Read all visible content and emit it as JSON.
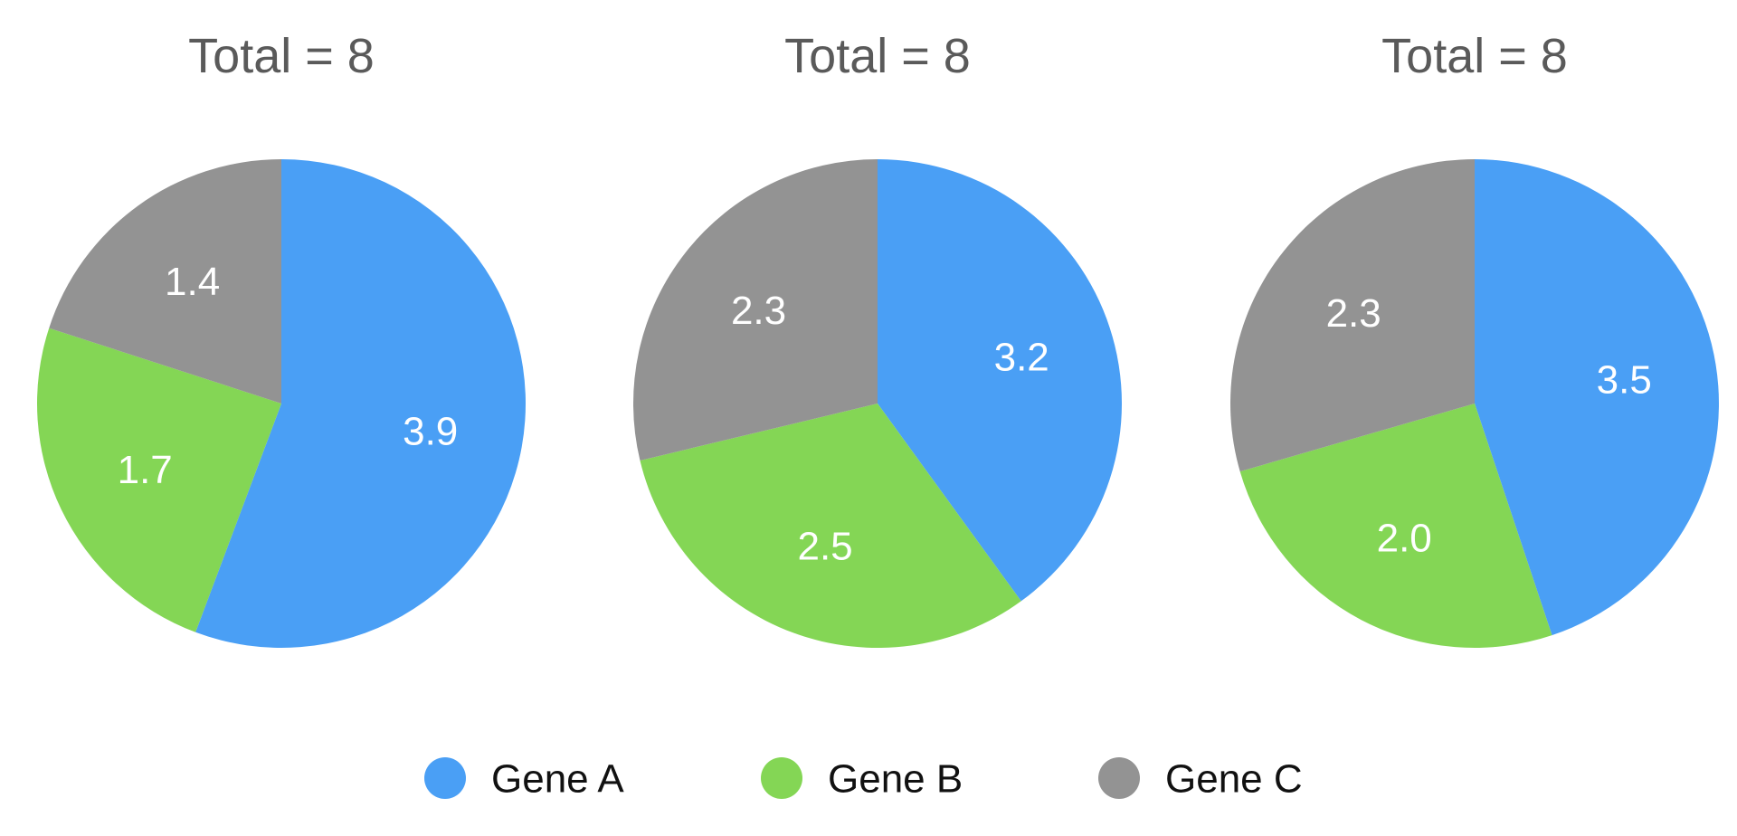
{
  "chart_data": [
    {
      "type": "pie",
      "title": "Total = 8",
      "slices": [
        {
          "label": "Gene A",
          "value": 3.9,
          "value_label": "3.9"
        },
        {
          "label": "Gene B",
          "value": 1.7,
          "value_label": "1.7"
        },
        {
          "label": "Gene C",
          "value": 1.4,
          "value_label": "1.4"
        }
      ]
    },
    {
      "type": "pie",
      "title": "Total = 8",
      "slices": [
        {
          "label": "Gene A",
          "value": 3.2,
          "value_label": "3.2"
        },
        {
          "label": "Gene B",
          "value": 2.5,
          "value_label": "2.5"
        },
        {
          "label": "Gene C",
          "value": 2.3,
          "value_label": "2.3"
        }
      ]
    },
    {
      "type": "pie",
      "title": "Total = 8",
      "slices": [
        {
          "label": "Gene A",
          "value": 3.5,
          "value_label": "3.5"
        },
        {
          "label": "Gene B",
          "value": 2.0,
          "value_label": "2.0"
        },
        {
          "label": "Gene C",
          "value": 2.3,
          "value_label": "2.3"
        }
      ]
    }
  ],
  "legend": {
    "placement": "bottom",
    "items": [
      {
        "label": "Gene A",
        "color": "#4A9FF5"
      },
      {
        "label": "Gene B",
        "color": "#84D655"
      },
      {
        "label": "Gene C",
        "color": "#939393"
      }
    ]
  },
  "colors": {
    "title": "#5A5A5A",
    "value_label": "#FFFFFF",
    "legend_text": "#111111"
  }
}
